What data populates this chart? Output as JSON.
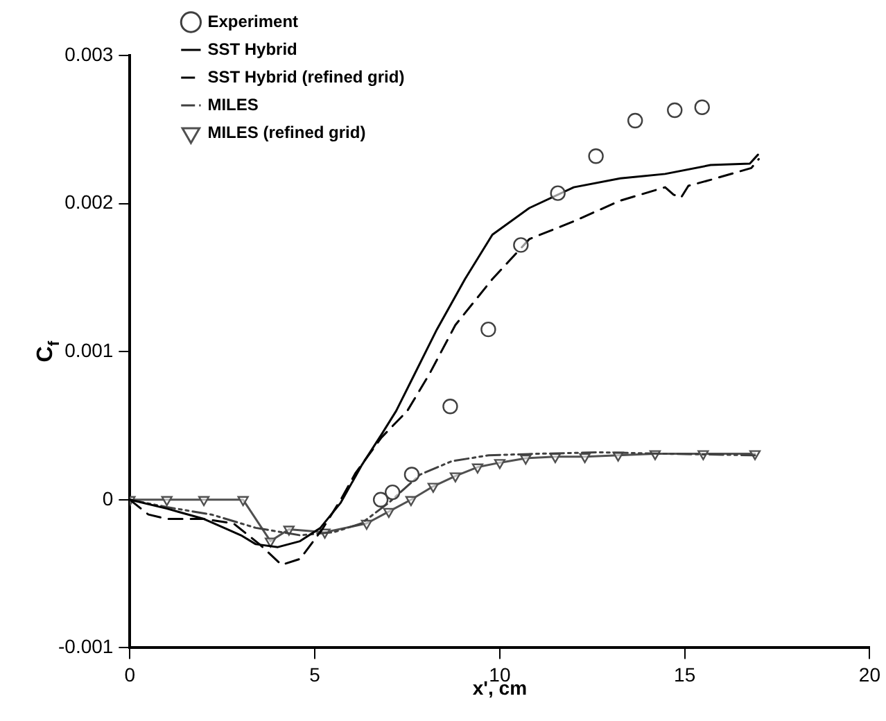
{
  "chart_data": {
    "type": "line",
    "xlabel": "x', cm",
    "ylabel": "C$_{f}$",
    "xlim": [
      0,
      20
    ],
    "xticks": [
      0,
      5,
      10,
      15,
      20
    ],
    "ylim": [
      -0.001,
      0.003
    ],
    "yticks": [
      -0.001,
      0,
      0.001,
      0.002,
      0.003
    ],
    "legend": "top left",
    "series": [
      {
        "name": "Experiment",
        "type": "scatter",
        "marker": "circle",
        "color": "#404040",
        "x": [
          6.78,
          7.1,
          7.62,
          8.66,
          9.69,
          10.57,
          11.57,
          12.6,
          13.66,
          14.73,
          15.47
        ],
        "values": [
          0,
          5e-05,
          0.00017,
          0.00063,
          0.00115,
          0.00172,
          0.00207,
          0.00232,
          0.00256,
          0.00263,
          0.00265
        ]
      },
      {
        "name": "SST Hybrid",
        "line_style": "solid",
        "color": "#000000",
        "x": [
          0,
          1,
          2,
          3,
          3.4,
          4,
          4.6,
          5.15,
          5.7,
          6.26,
          6.8,
          7.2,
          7.7,
          8.3,
          9.06,
          9.8,
          10.8,
          12.0,
          13.26,
          14.47,
          15.7,
          16.76,
          16.98
        ],
        "values": [
          0,
          -6e-05,
          -0.00013,
          -0.00024,
          -0.0003,
          -0.00032,
          -0.00028,
          -0.00019,
          -2e-05,
          0.00023,
          0.00044,
          0.0006,
          0.00085,
          0.00115,
          0.00149,
          0.00179,
          0.00197,
          0.00211,
          0.00217,
          0.0022,
          0.00226,
          0.00227,
          0.00233
        ]
      },
      {
        "name": "SST Hybrid (refined grid)",
        "line_style": "dashed",
        "color": "#000000",
        "x": [
          0,
          0.5,
          1,
          2,
          2.8,
          3.5,
          4.1,
          4.6,
          5.2,
          5.7,
          6.1,
          6.8,
          7.5,
          8.1,
          8.8,
          9.8,
          10.8,
          12,
          13.26,
          14.47,
          14.7,
          14.9,
          15.1,
          15.7,
          16.8,
          17.0
        ],
        "values": [
          0,
          -0.0001,
          -0.00013,
          -0.00013,
          -0.00016,
          -0.0003,
          -0.00044,
          -0.0004,
          -0.0002,
          0,
          0.00018,
          0.00042,
          0.0006,
          0.00085,
          0.00118,
          0.00149,
          0.00176,
          0.00188,
          0.00202,
          0.00211,
          0.00206,
          0.00204,
          0.00212,
          0.00216,
          0.00224,
          0.0023
        ]
      },
      {
        "name": "MILES",
        "line_style": "dashdot",
        "color": "#404040",
        "x": [
          0,
          1,
          2.2,
          3.4,
          4.6,
          5.5,
          6.26,
          7.0,
          7.85,
          8.7,
          9.7,
          11,
          12.7,
          14.5,
          16.9
        ],
        "values": [
          0,
          -5e-05,
          -0.0001,
          -0.00019,
          -0.00024,
          -0.00022,
          -0.00016,
          -2e-05,
          0.00017,
          0.00026,
          0.0003,
          0.00031,
          0.00032,
          0.00031,
          0.0003
        ]
      },
      {
        "name": "MILES (refined grid)",
        "line_style": "solid",
        "marker": "triangle",
        "color": "#505050",
        "x": [
          0,
          1,
          2,
          3.06,
          3.8,
          4.3,
          5.27,
          6.4,
          7.0,
          7.6,
          8.2,
          8.8,
          9.4,
          10.0,
          10.7,
          11.5,
          12.3,
          13.2,
          14.2,
          15.5,
          16.9
        ],
        "values": [
          0,
          0,
          0,
          0,
          -0.00028,
          -0.0002,
          -0.00022,
          -0.00016,
          -8e-05,
          0,
          9e-05,
          0.00016,
          0.00022,
          0.00025,
          0.00028,
          0.00029,
          0.00029,
          0.0003,
          0.00031,
          0.00031,
          0.00031
        ]
      }
    ]
  }
}
